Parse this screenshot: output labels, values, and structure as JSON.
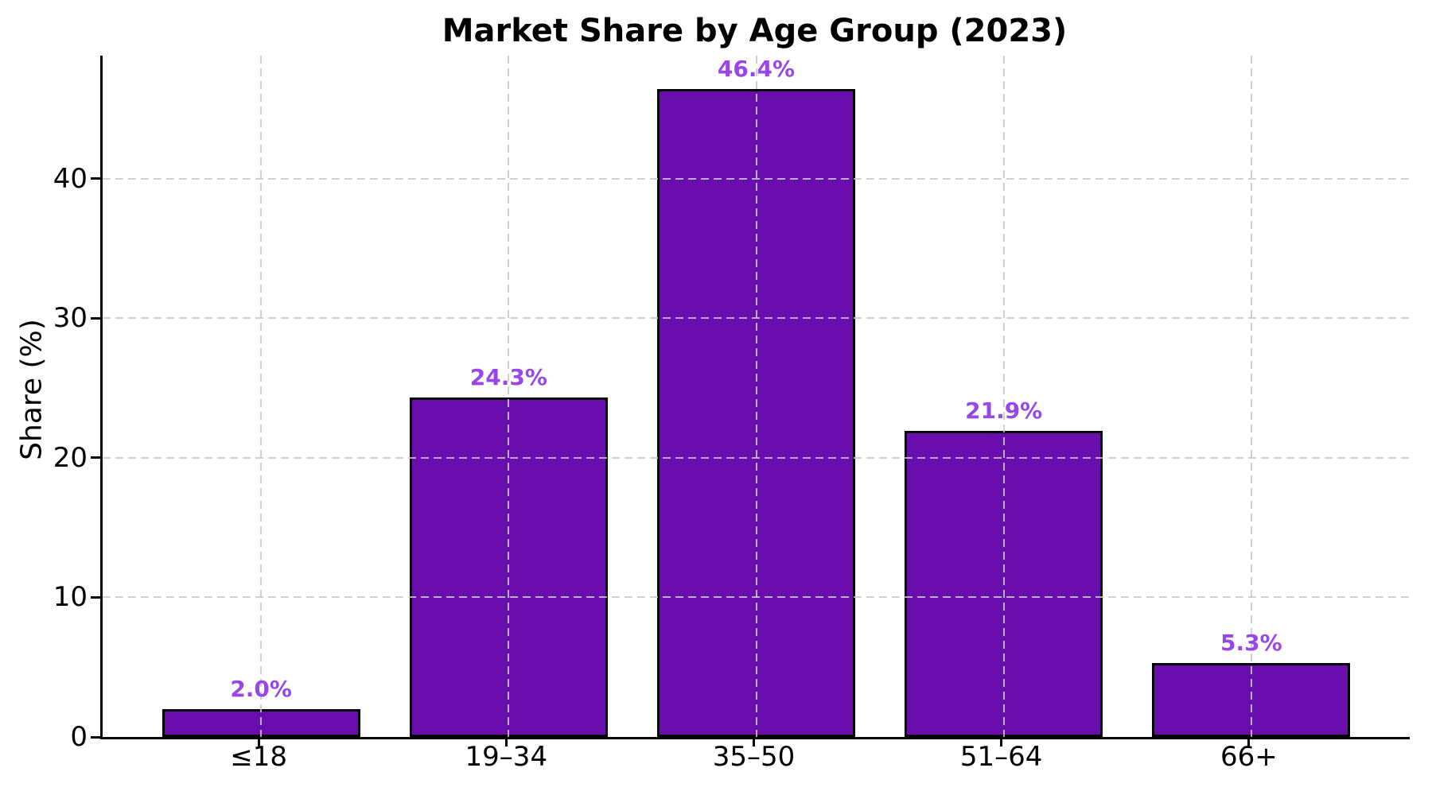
{
  "chart_data": {
    "type": "bar",
    "title": "Market Share by Age Group (2023)",
    "xlabel": "",
    "ylabel": "Share (%)",
    "categories": [
      "≤18",
      "19–34",
      "35–50",
      "51–64",
      "66+"
    ],
    "values": [
      2.0,
      24.3,
      46.4,
      21.9,
      5.3
    ],
    "value_labels": [
      "2.0%",
      "24.3%",
      "46.4%",
      "21.9%",
      "5.3%"
    ],
    "yticks": [
      0,
      10,
      20,
      30,
      40
    ],
    "ylim": [
      0,
      48.8
    ],
    "grid": "dashed gridlines on both axes, drawn over bars",
    "legend": "none",
    "colors": {
      "bar_fill": "#6A0DAD",
      "bar_edge": "#000000",
      "value_label": "#9846E8",
      "grid": "#C8C8C8",
      "text": "#000000",
      "background": "#FFFFFF"
    }
  }
}
